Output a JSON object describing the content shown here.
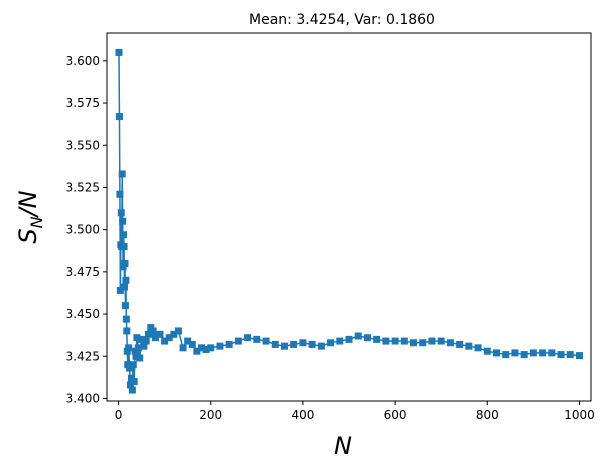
{
  "chart_data": {
    "type": "line",
    "title": "Mean: 3.4254, Var: 0.1860",
    "xlabel": "N",
    "ylabel": "S_N/N",
    "ylabel_parts": {
      "main1": "S",
      "sub": "N",
      "main2": "/N"
    },
    "xlim": [
      -25,
      1025
    ],
    "ylim": [
      3.3985,
      3.6165
    ],
    "xticks": [
      0,
      200,
      400,
      600,
      800,
      1000
    ],
    "xtick_labels": [
      "0",
      "200",
      "400",
      "600",
      "800",
      "1000"
    ],
    "yticks": [
      3.4,
      3.425,
      3.45,
      3.475,
      3.5,
      3.525,
      3.55,
      3.575,
      3.6
    ],
    "ytick_labels": [
      "3.400",
      "3.425",
      "3.450",
      "3.475",
      "3.500",
      "3.525",
      "3.550",
      "3.575",
      "3.600"
    ],
    "grid": false,
    "marker": "square",
    "color": "#1f77b4",
    "series": [
      {
        "x": [
          1,
          2,
          3,
          4,
          5,
          6,
          7,
          8,
          9,
          10,
          11,
          12,
          13,
          14,
          15,
          16,
          17,
          18,
          19,
          20,
          22,
          24,
          26,
          28,
          30,
          32,
          34,
          36,
          38,
          40,
          43,
          46,
          50,
          55,
          60,
          65,
          70,
          75,
          80,
          90,
          100,
          110,
          120,
          130,
          140,
          150,
          160,
          170,
          180,
          190,
          200,
          220,
          240,
          260,
          280,
          300,
          320,
          340,
          360,
          380,
          400,
          420,
          440,
          460,
          480,
          500,
          520,
          540,
          560,
          580,
          600,
          620,
          640,
          660,
          680,
          700,
          720,
          740,
          760,
          780,
          800,
          820,
          840,
          860,
          880,
          900,
          920,
          940,
          960,
          980,
          1000
        ],
        "y": [
          3.605,
          3.567,
          3.521,
          3.464,
          3.491,
          3.51,
          3.49,
          3.533,
          3.505,
          3.478,
          3.497,
          3.49,
          3.466,
          3.48,
          3.455,
          3.47,
          3.447,
          3.44,
          3.428,
          3.42,
          3.43,
          3.418,
          3.408,
          3.412,
          3.405,
          3.42,
          3.41,
          3.428,
          3.425,
          3.436,
          3.43,
          3.424,
          3.435,
          3.431,
          3.434,
          3.438,
          3.442,
          3.44,
          3.436,
          3.438,
          3.434,
          3.436,
          3.438,
          3.44,
          3.43,
          3.434,
          3.432,
          3.428,
          3.43,
          3.429,
          3.43,
          3.431,
          3.432,
          3.434,
          3.436,
          3.435,
          3.434,
          3.432,
          3.431,
          3.432,
          3.433,
          3.432,
          3.431,
          3.433,
          3.434,
          3.435,
          3.437,
          3.436,
          3.435,
          3.434,
          3.434,
          3.434,
          3.433,
          3.433,
          3.434,
          3.434,
          3.433,
          3.432,
          3.431,
          3.43,
          3.428,
          3.427,
          3.426,
          3.427,
          3.426,
          3.427,
          3.427,
          3.427,
          3.426,
          3.426,
          3.4254
        ]
      }
    ]
  }
}
